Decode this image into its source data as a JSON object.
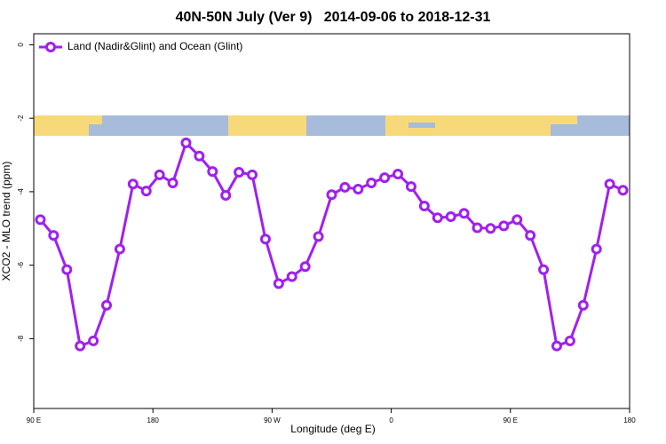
{
  "chart_data": {
    "type": "line",
    "title": "40N-50N July (Ver 9)   2014-09-06 to 2018-12-31",
    "x_label": "Longitude (deg E)",
    "y_label": "XCO2 - MLO trend (ppm)",
    "x": [
      95,
      105,
      115,
      125,
      135,
      145,
      155,
      165,
      175,
      185,
      195,
      205,
      215,
      225,
      235,
      245,
      255,
      265,
      275,
      285,
      295,
      305,
      315,
      325,
      335,
      345,
      355,
      365,
      375,
      385,
      395,
      405,
      415,
      425,
      435,
      445,
      455,
      465,
      475,
      485,
      495,
      505,
      515,
      525,
      535
    ],
    "series": [
      {
        "name": "Land (Nadir&Glint) and Ocean (Glint)",
        "color": "#a020f0",
        "values": [
          -4.76,
          -5.19,
          -6.12,
          -8.2,
          -8.06,
          -7.09,
          -5.56,
          -3.79,
          -3.98,
          -3.54,
          -3.76,
          -2.67,
          -3.03,
          -3.45,
          -4.1,
          -3.47,
          -3.54,
          -5.29,
          -6.5,
          -6.31,
          -6.04,
          -5.22,
          -4.08,
          -3.88,
          -3.93,
          -3.76,
          -3.62,
          -3.52,
          -3.86,
          -4.39,
          -4.71,
          -4.68,
          -4.59,
          -4.98,
          -5.0,
          -4.93,
          -4.76,
          -5.19,
          -6.12,
          -8.2,
          -8.06,
          -7.09,
          -5.56,
          -3.79,
          -3.96
        ]
      }
    ],
    "xlim": [
      90,
      540
    ],
    "xticks": [
      {
        "value": 90,
        "label": "90 E"
      },
      180,
      {
        "value": 270,
        "label": "90 W"
      },
      {
        "value": 360,
        "label": "0"
      },
      {
        "value": 450,
        "label": "90 E"
      },
      {
        "value": 540,
        "label": "180"
      }
    ],
    "ylim": [
      -9.9,
      0.3
    ],
    "yticks": [
      0,
      -2,
      -4,
      -6,
      -8
    ],
    "legend": "top-left"
  }
}
